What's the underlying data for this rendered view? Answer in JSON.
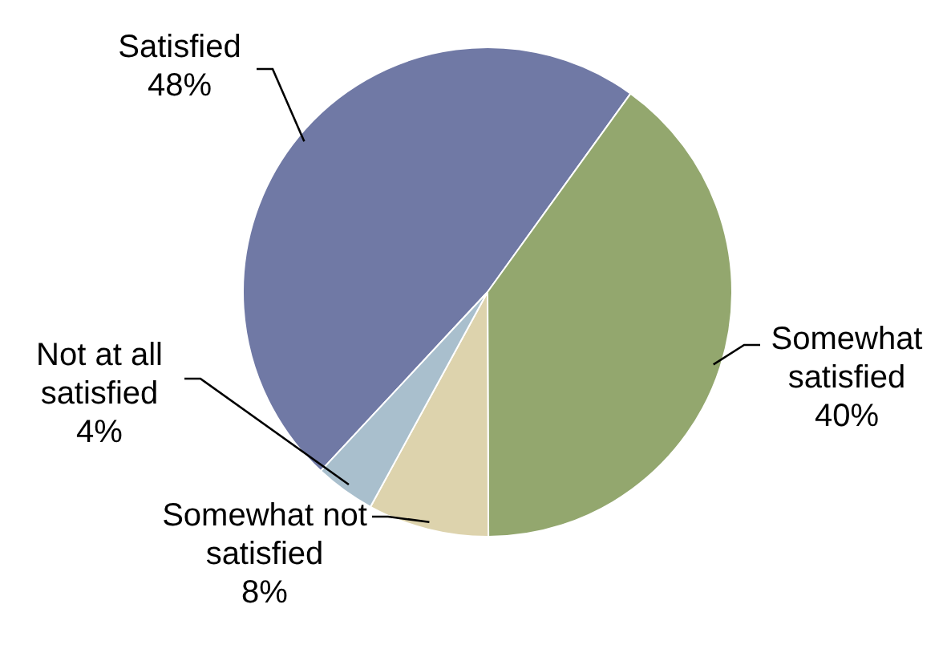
{
  "chart_data": {
    "type": "pie",
    "categories": [
      "Satisfied",
      "Somewhat satisfied",
      "Somewhat not satisfied",
      "Not at all satisfied"
    ],
    "values": [
      48,
      40,
      8,
      4
    ],
    "colors": [
      "#7079a5",
      "#93a76e",
      "#ddd3ad",
      "#a9bfcd"
    ],
    "value_labels": [
      "48%",
      "40%",
      "8%",
      "4%"
    ],
    "legend": false
  }
}
